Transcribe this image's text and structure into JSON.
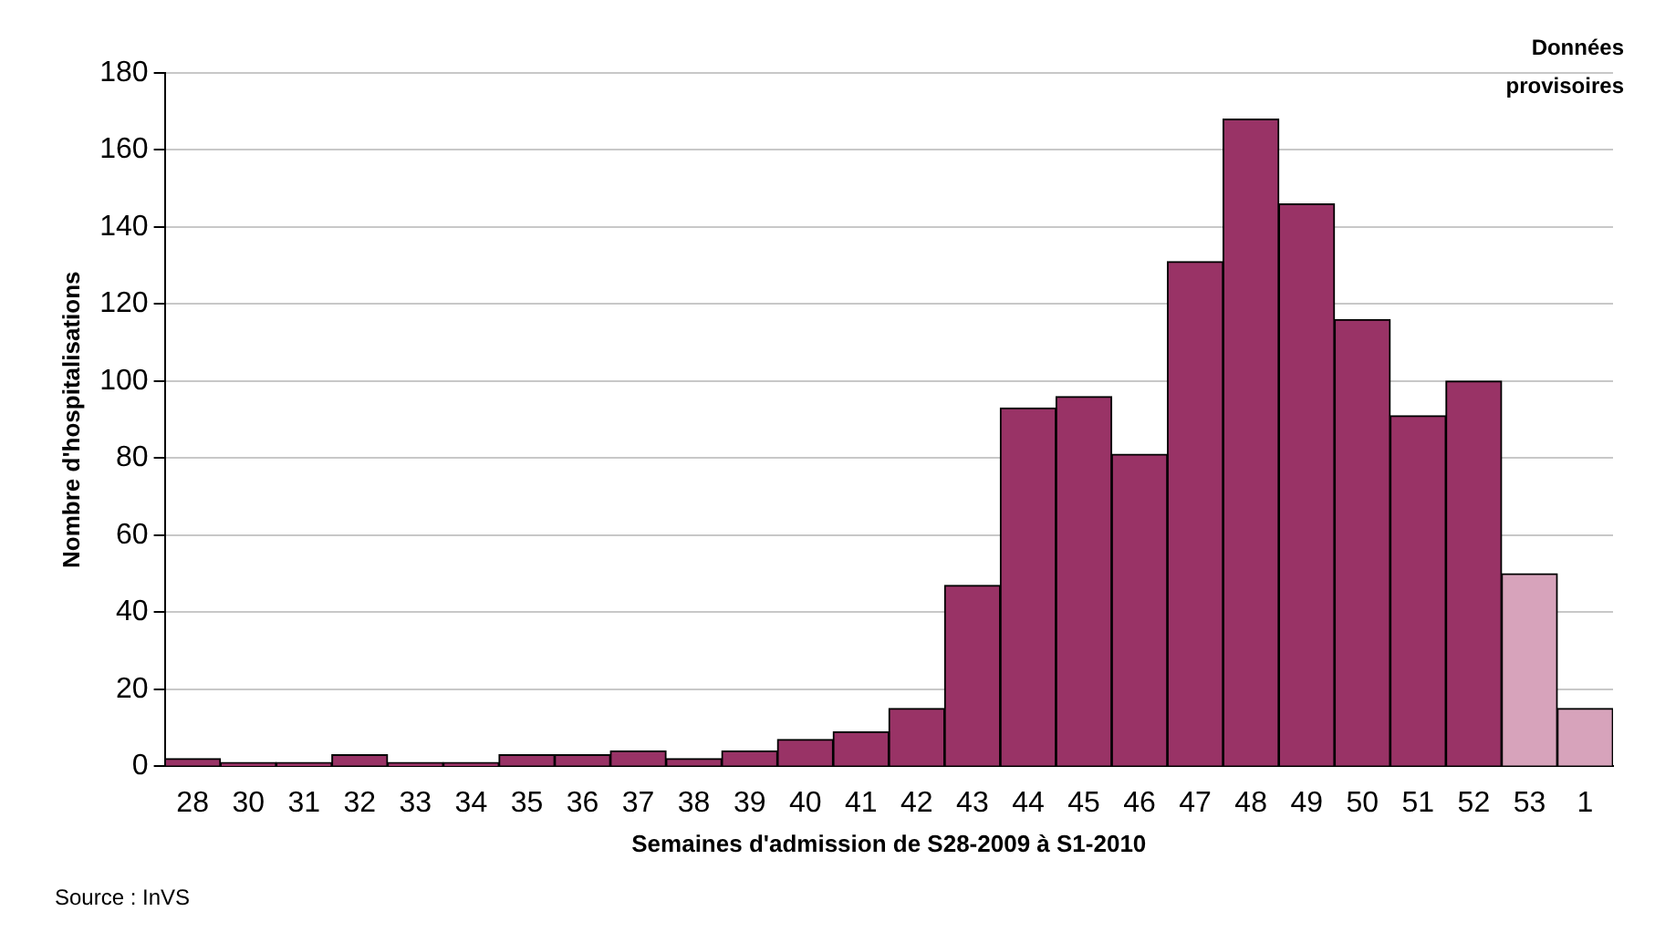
{
  "chart_data": {
    "type": "bar",
    "xlabel": "Semaines d'admission de S28-2009 à S1-2010",
    "ylabel": "Nombre d'hospitalisations",
    "categories": [
      "28",
      "30",
      "31",
      "32",
      "33",
      "34",
      "35",
      "36",
      "37",
      "38",
      "39",
      "40",
      "41",
      "42",
      "43",
      "44",
      "45",
      "46",
      "47",
      "48",
      "49",
      "50",
      "51",
      "52",
      "53",
      "1"
    ],
    "values": [
      2,
      1,
      1,
      3,
      1,
      1,
      3,
      3,
      4,
      2,
      4,
      7,
      9,
      15,
      47,
      93,
      96,
      81,
      131,
      168,
      146,
      116,
      91,
      100,
      50,
      15
    ],
    "colors": [
      "#993366",
      "#993366",
      "#993366",
      "#993366",
      "#993366",
      "#993366",
      "#993366",
      "#993366",
      "#993366",
      "#993366",
      "#993366",
      "#993366",
      "#993366",
      "#993366",
      "#993366",
      "#993366",
      "#993366",
      "#993366",
      "#993366",
      "#993366",
      "#993366",
      "#993366",
      "#993366",
      "#993366",
      "#d7a3bb",
      "#d7a3bb"
    ],
    "ylim": [
      0,
      180
    ],
    "yticks": [
      0,
      20,
      40,
      60,
      80,
      100,
      120,
      140,
      160,
      180
    ],
    "grid": "y",
    "legend": false,
    "annotations": [
      "Données provisoires",
      "Source : InVS"
    ]
  }
}
